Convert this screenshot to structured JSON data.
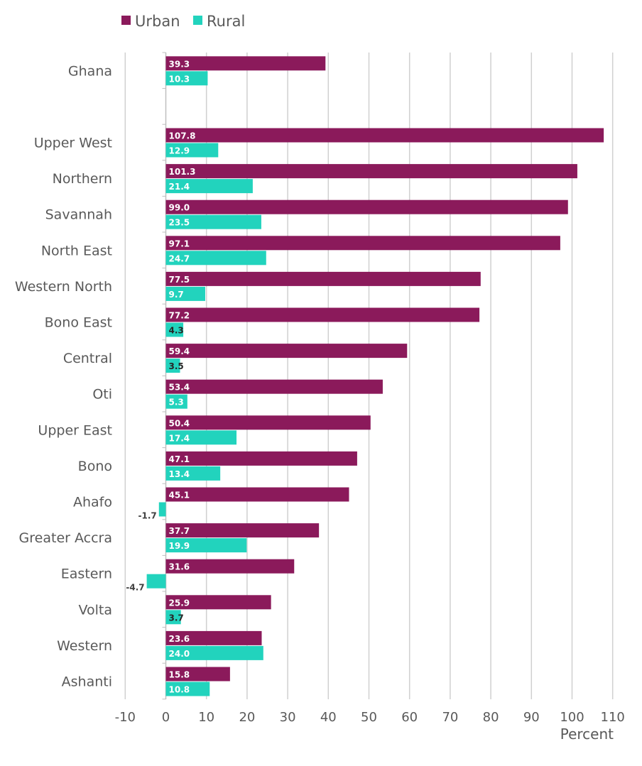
{
  "chart_data": {
    "type": "bar",
    "orientation": "horizontal",
    "categories": [
      "Ghana",
      "",
      "Upper West",
      "Northern",
      "Savannah",
      "North East",
      "Western North",
      "Bono East",
      "Central",
      "Oti",
      "Upper East",
      "Bono",
      "Ahafo",
      "Greater Accra",
      "Eastern",
      "Volta",
      "Western",
      "Ashanti"
    ],
    "series": [
      {
        "name": "Urban",
        "color": "#8B1A5B",
        "values": [
          39.3,
          null,
          107.8,
          101.3,
          99.0,
          97.1,
          77.5,
          77.2,
          59.4,
          53.4,
          50.4,
          47.1,
          45.1,
          37.7,
          31.6,
          25.9,
          23.6,
          15.8
        ]
      },
      {
        "name": "Rural",
        "color": "#22D3BD",
        "values": [
          10.3,
          null,
          12.9,
          21.4,
          23.5,
          24.7,
          9.7,
          4.3,
          3.5,
          5.3,
          17.4,
          13.4,
          -1.7,
          19.9,
          -4.7,
          3.7,
          24.0,
          10.8
        ]
      }
    ],
    "xlim": [
      -10,
      110
    ],
    "xticks": [
      -10,
      0,
      10,
      20,
      30,
      40,
      50,
      60,
      70,
      80,
      90,
      100,
      110
    ],
    "xlabel": "Percent",
    "ylabel": "",
    "title": "",
    "legend_position": "top-left",
    "grid": "vertical"
  }
}
